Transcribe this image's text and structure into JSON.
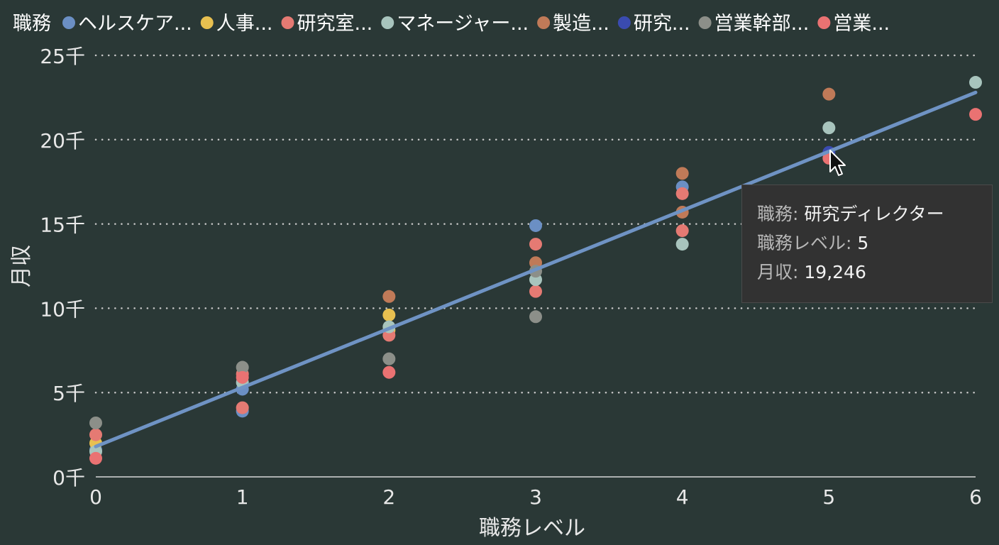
{
  "chart_data": {
    "type": "scatter",
    "title": "",
    "xlabel": "職務レベル",
    "ylabel": "月収",
    "xlim": [
      0,
      6
    ],
    "ylim": [
      0,
      25000
    ],
    "x_ticks": [
      "0",
      "1",
      "2",
      "3",
      "4",
      "5",
      "6"
    ],
    "y_ticks": [
      "0千",
      "5千",
      "10千",
      "15千",
      "20千",
      "25千"
    ],
    "grid": "horizontal-dotted",
    "legend_title": "職務",
    "legend_position": "top",
    "series": [
      {
        "name": "ヘルスケア...",
        "color": "#6b8fc4",
        "points": [
          [
            0,
            1600
          ],
          [
            1,
            3900
          ],
          [
            1,
            5200
          ],
          [
            3,
            14900
          ],
          [
            4,
            17200
          ]
        ]
      },
      {
        "name": "人事...",
        "color": "#e8c050",
        "points": [
          [
            0,
            2000
          ],
          [
            2,
            9600
          ],
          [
            2,
            8700
          ]
        ]
      },
      {
        "name": "研究室...",
        "color": "#e57a73",
        "points": [
          [
            0,
            2500
          ],
          [
            1,
            6100
          ],
          [
            1,
            4100
          ],
          [
            2,
            8400
          ],
          [
            3,
            13800
          ],
          [
            3,
            11000
          ],
          [
            4,
            16800
          ],
          [
            4,
            14600
          ]
        ]
      },
      {
        "name": "マネージャー...",
        "color": "#a8c4bd",
        "points": [
          [
            0,
            1500
          ],
          [
            1,
            5600
          ],
          [
            2,
            8900
          ],
          [
            3,
            11700
          ],
          [
            4,
            13800
          ],
          [
            5,
            20700
          ],
          [
            6,
            23400
          ]
        ]
      },
      {
        "name": "製造...",
        "color": "#c07a58",
        "points": [
          [
            2,
            10700
          ],
          [
            3,
            12700
          ],
          [
            4,
            18000
          ],
          [
            4,
            15700
          ],
          [
            5,
            22700
          ]
        ]
      },
      {
        "name": "研究...",
        "color": "#3a4bb0",
        "points": [
          [
            5,
            19246
          ]
        ]
      },
      {
        "name": "営業幹部...",
        "color": "#8c8f89",
        "points": [
          [
            0,
            3200
          ],
          [
            1,
            6500
          ],
          [
            2,
            7000
          ],
          [
            3,
            9500
          ],
          [
            3,
            12200
          ]
        ]
      },
      {
        "name": "営業...",
        "color": "#ea7272",
        "points": [
          [
            0,
            1100
          ],
          [
            1,
            5900
          ],
          [
            2,
            6200
          ],
          [
            5,
            18900
          ],
          [
            6,
            21500
          ]
        ]
      }
    ],
    "trendline": {
      "color": "#6f93c4",
      "from": [
        0,
        1800
      ],
      "to": [
        6,
        22800
      ]
    }
  },
  "tooltip": {
    "rows": [
      {
        "key": "職務:",
        "value": "研究ディレクター"
      },
      {
        "key": "職務レベル:",
        "value": "5"
      },
      {
        "key": "月収:",
        "value": "19,246"
      }
    ]
  }
}
